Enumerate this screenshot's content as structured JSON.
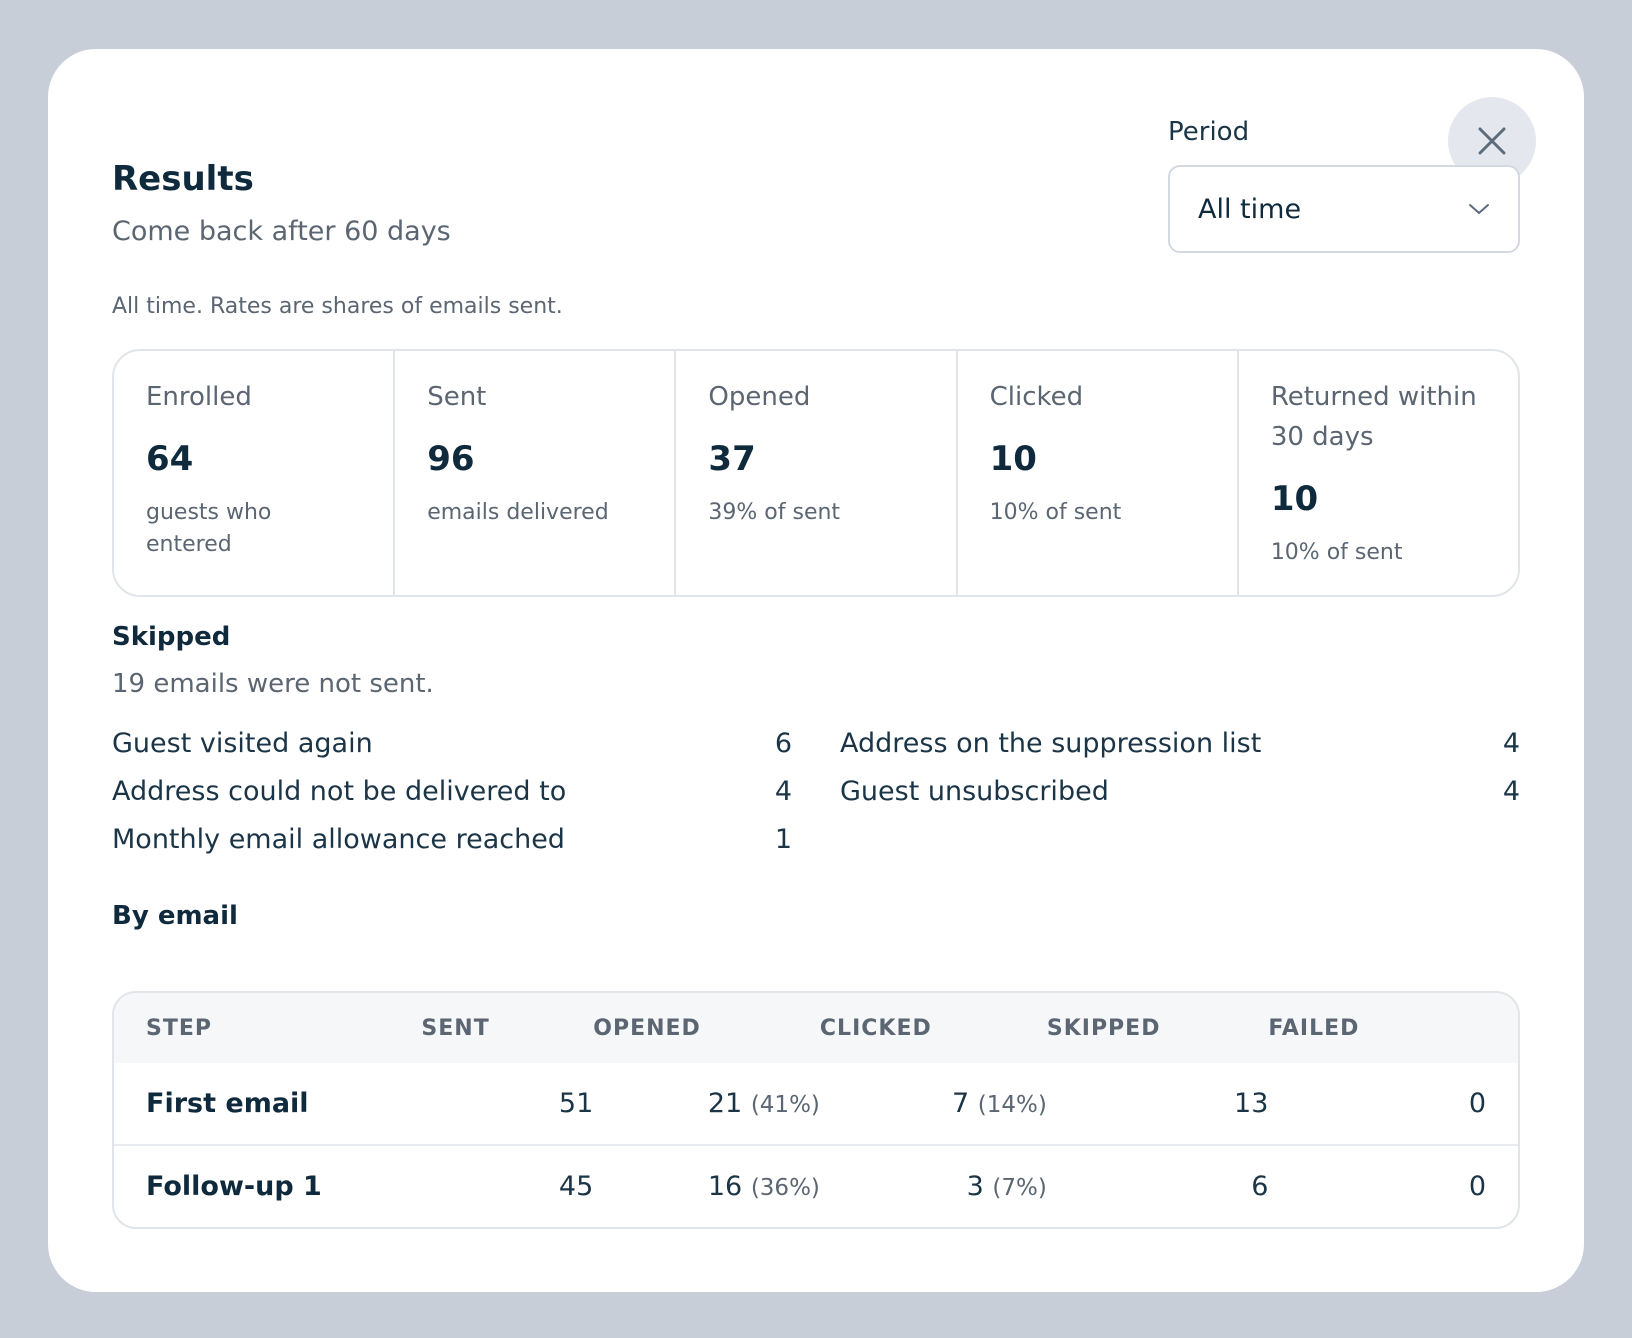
{
  "header": {
    "title": "Results",
    "subtitle": "Come back after 60 days"
  },
  "period": {
    "label": "Period",
    "selected": "All time"
  },
  "note": "All time. Rates are shares of emails sent.",
  "stats": [
    {
      "label": "Enrolled",
      "value": "64",
      "desc": "guests who entered"
    },
    {
      "label": "Sent",
      "value": "96",
      "desc": "emails delivered"
    },
    {
      "label": "Opened",
      "value": "37",
      "desc": "39% of sent"
    },
    {
      "label": "Clicked",
      "value": "10",
      "desc": "10% of sent"
    },
    {
      "label": "Returned within 30 days",
      "value": "10",
      "desc": "10% of sent"
    }
  ],
  "skipped": {
    "title": "Skipped",
    "summary": "19 emails were not sent.",
    "left": [
      {
        "label": "Guest visited again",
        "count": "6"
      },
      {
        "label": "Address could not be delivered to",
        "count": "4"
      },
      {
        "label": "Monthly email allowance reached",
        "count": "1"
      }
    ],
    "right": [
      {
        "label": "Address on the suppression list",
        "count": "4"
      },
      {
        "label": "Guest unsubscribed",
        "count": "4"
      }
    ]
  },
  "by_email": {
    "title": "By email",
    "columns": [
      "STEP",
      "SENT",
      "OPENED",
      "CLICKED",
      "SKIPPED",
      "FAILED"
    ],
    "rows": [
      {
        "step": "First email",
        "sent": "51",
        "opened": "21",
        "opened_pct": "(41%)",
        "clicked": "7",
        "clicked_pct": "(14%)",
        "skipped": "13",
        "failed": "0"
      },
      {
        "step": "Follow-up 1",
        "sent": "45",
        "opened": "16",
        "opened_pct": "(36%)",
        "clicked": "3",
        "clicked_pct": "(7%)",
        "skipped": "6",
        "failed": "0"
      }
    ]
  },
  "icons": {
    "close": "close-icon",
    "chevron": "chevron-down-icon"
  },
  "colors": {
    "backdrop": "#c8ced7",
    "heading": "#0f2a3c",
    "muted": "#5b6672",
    "border": "#e1e5ea"
  }
}
